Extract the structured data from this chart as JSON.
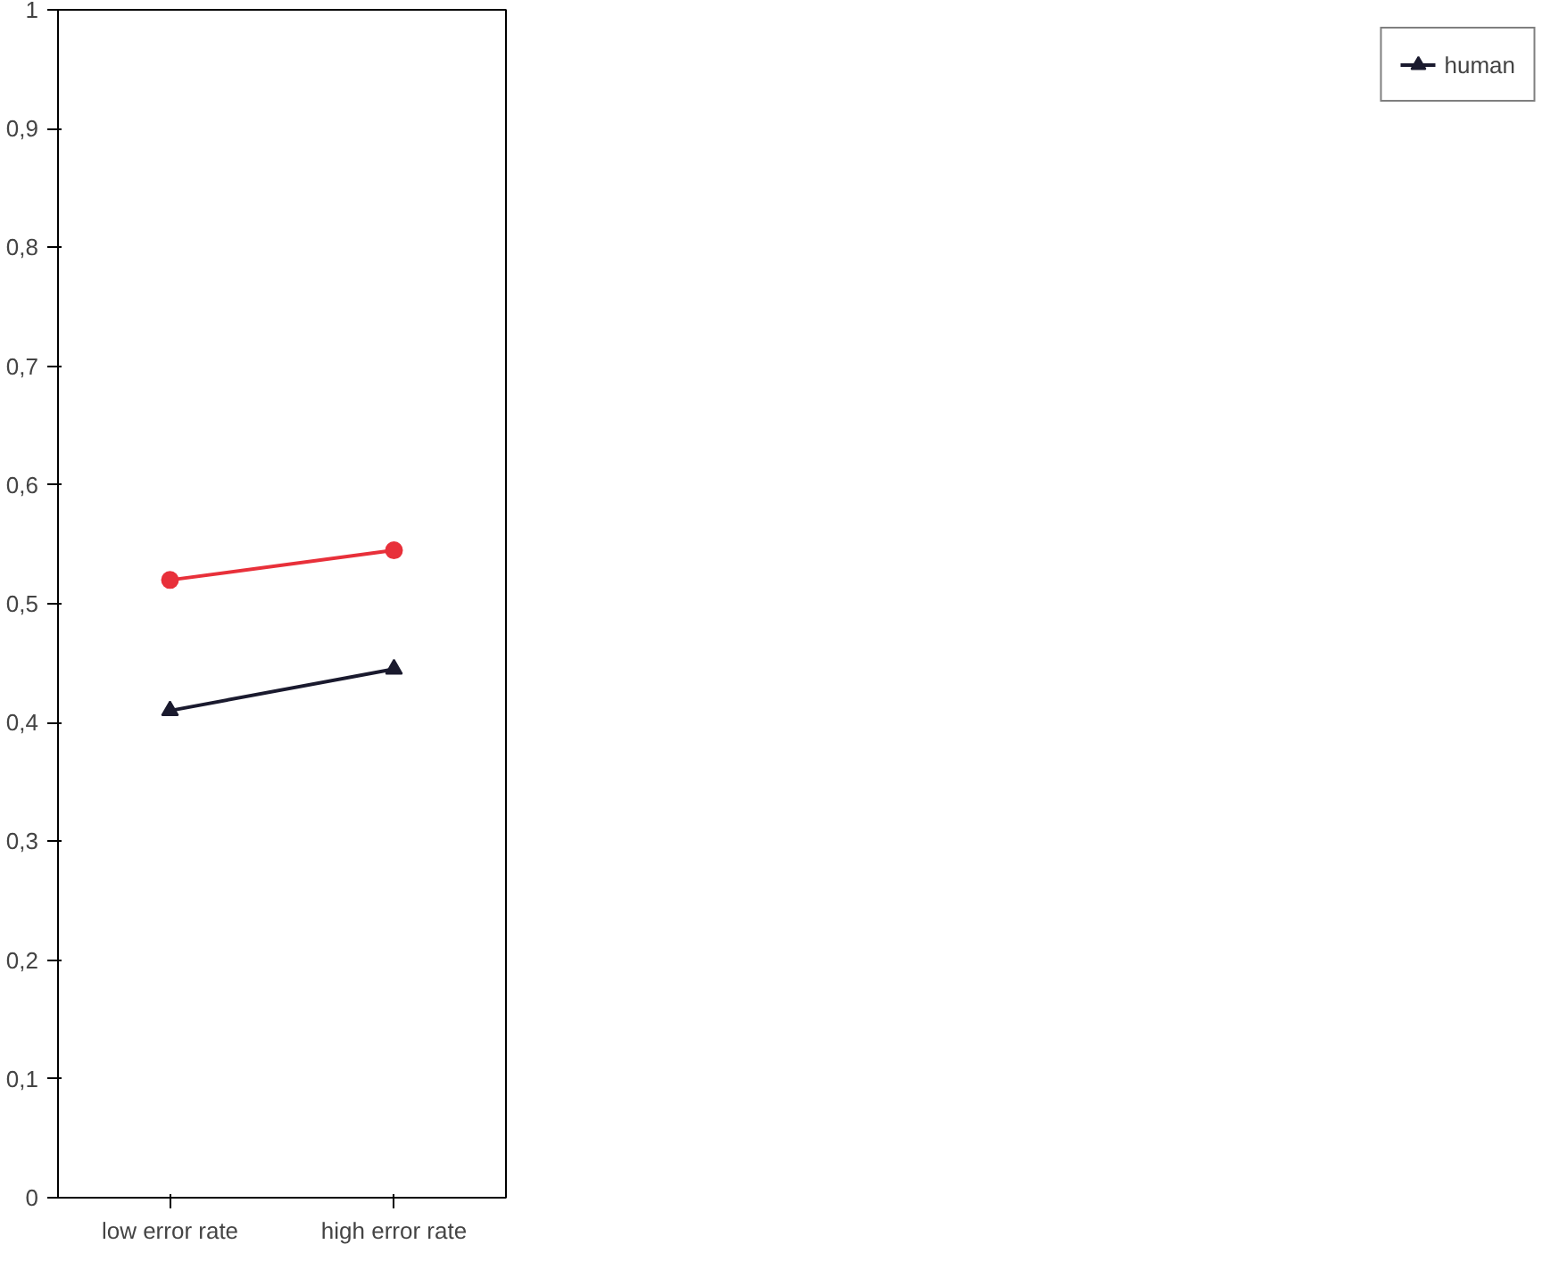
{
  "chart_data": {
    "type": "line",
    "categories": [
      "low error rate",
      "high error rate"
    ],
    "series": [
      {
        "color": "#e8303a",
        "marker": "circle",
        "values": [
          0.52,
          0.545
        ]
      },
      {
        "name": "human",
        "color": "#1a1a2e",
        "marker": "triangle",
        "values": [
          0.41,
          0.445
        ]
      }
    ],
    "ylim": [
      0,
      1
    ],
    "yticks": [
      0,
      {
        "value": 0.1,
        "label": "0,1"
      },
      {
        "value": 0.2,
        "label": "0,2"
      },
      {
        "value": 0.3,
        "label": "0,3"
      },
      {
        "value": 0.4,
        "label": "0,4"
      },
      {
        "value": 0.5,
        "label": "0,5"
      },
      {
        "value": 0.6,
        "label": "0,6"
      },
      {
        "value": 0.7,
        "label": "0,7"
      },
      {
        "value": 0.8,
        "label": "0,8"
      },
      {
        "value": 0.9,
        "label": "0,9"
      },
      1
    ],
    "legend": "right",
    "grid": false
  }
}
